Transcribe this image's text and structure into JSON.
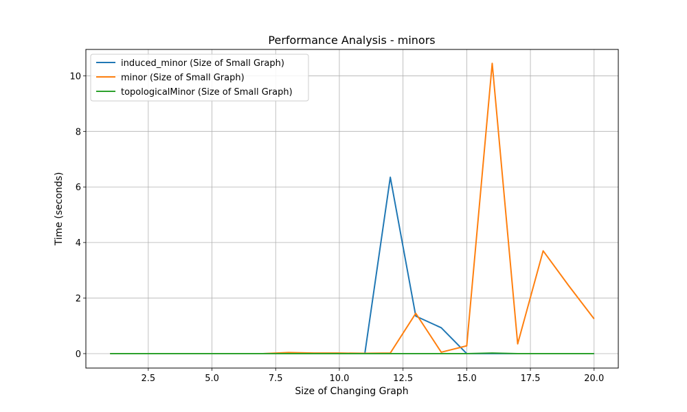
{
  "chart_data": {
    "type": "line",
    "title": "Performance Analysis - minors",
    "xlabel": "Size of Changing Graph",
    "ylabel": "Time (seconds)",
    "xlim": [
      0.05,
      20.95
    ],
    "ylim": [
      -0.52,
      10.95
    ],
    "xticks": [
      2.5,
      5.0,
      7.5,
      10.0,
      12.5,
      15.0,
      17.5,
      20.0
    ],
    "xtick_labels": [
      "2.5",
      "5.0",
      "7.5",
      "10.0",
      "12.5",
      "15.0",
      "17.5",
      "20.0"
    ],
    "yticks": [
      0,
      2,
      4,
      6,
      8,
      10
    ],
    "ytick_labels": [
      "0",
      "2",
      "4",
      "6",
      "8",
      "10"
    ],
    "grid": true,
    "legend_position": "top-left",
    "x": [
      1,
      2,
      3,
      4,
      5,
      6,
      7,
      8,
      9,
      10,
      11,
      12,
      13,
      14,
      15,
      16,
      17,
      18,
      19,
      20
    ],
    "series": [
      {
        "name": "induced_minor (Size of Small Graph)",
        "color": "#1f77b4",
        "values": [
          0,
          0,
          0,
          0,
          0,
          0,
          0,
          0.01,
          0,
          0,
          0,
          6.35,
          1.35,
          0.93,
          0,
          0,
          0,
          0,
          0,
          0
        ]
      },
      {
        "name": "minor (Size of Small Graph)",
        "color": "#ff7f0e",
        "values": [
          0,
          0,
          0,
          0,
          0,
          0,
          0,
          0.04,
          0.02,
          0.02,
          0.01,
          0.02,
          1.45,
          0.05,
          0.28,
          10.45,
          0.35,
          3.7,
          2.45,
          1.25
        ]
      },
      {
        "name": "topologicalMinor (Size of Small Graph)",
        "color": "#2ca02c",
        "values": [
          0,
          0,
          0,
          0,
          0,
          0,
          0,
          0,
          0,
          0,
          0,
          0,
          0,
          0,
          0,
          0.02,
          0,
          0,
          0,
          0
        ]
      }
    ]
  }
}
